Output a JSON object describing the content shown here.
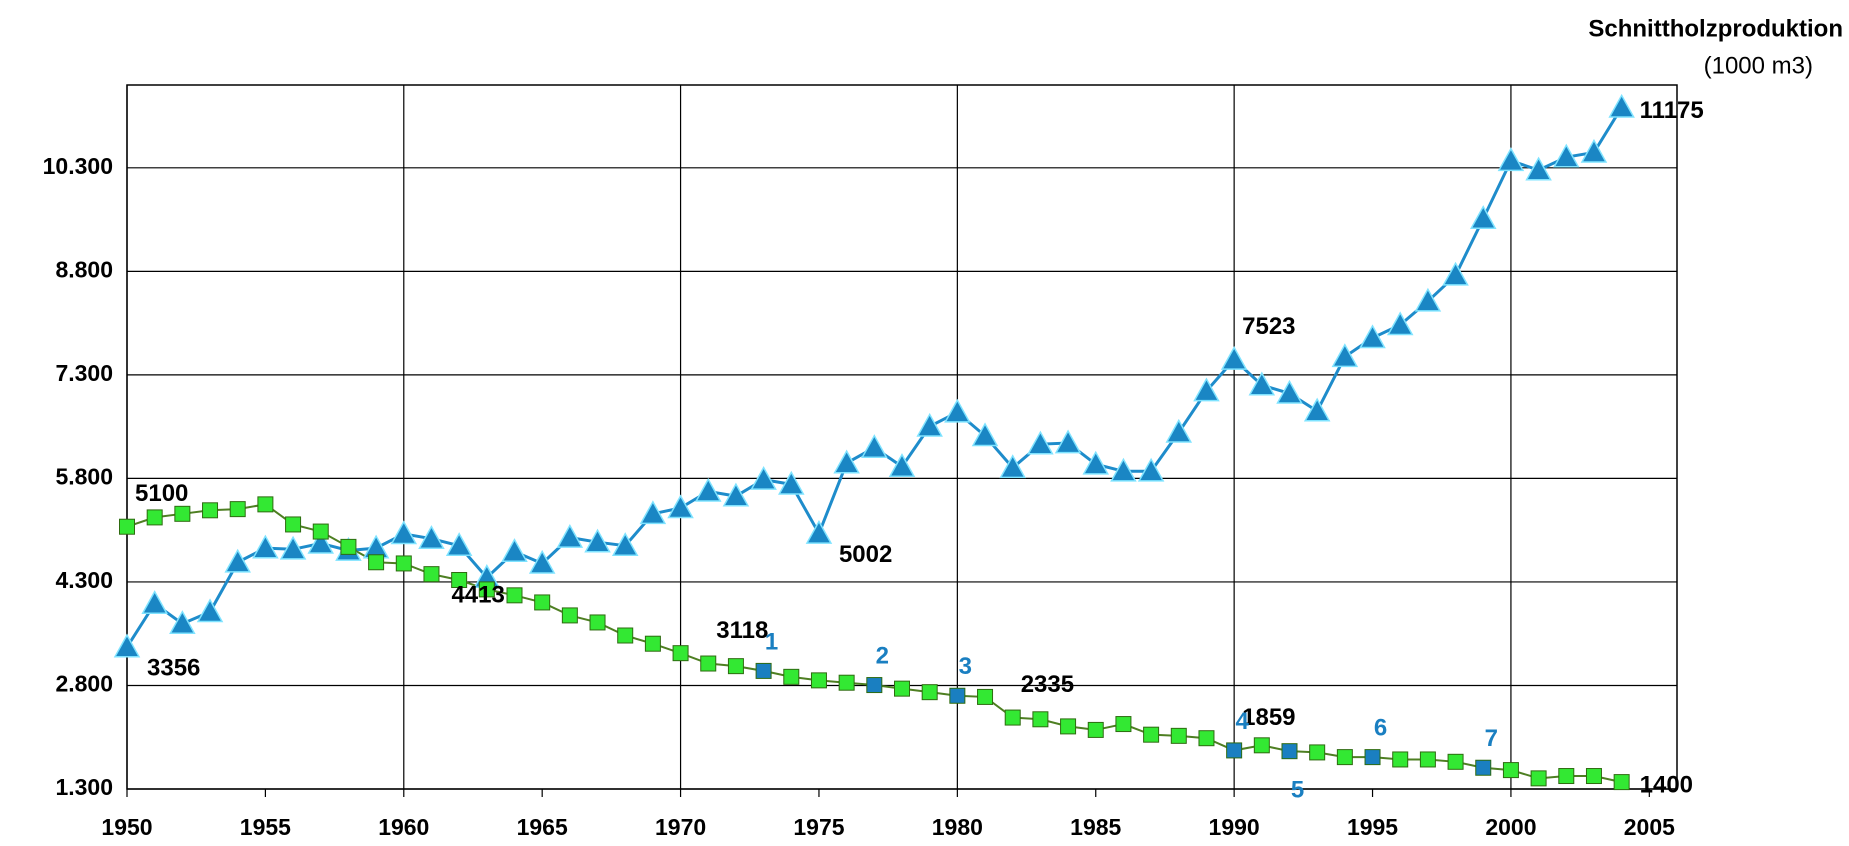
{
  "chart_data": {
    "type": "line",
    "title": "Schnittholzproduktion",
    "subtitle": "(1000 m3)",
    "x": [
      1950,
      1951,
      1952,
      1953,
      1954,
      1955,
      1956,
      1957,
      1958,
      1959,
      1960,
      1961,
      1962,
      1963,
      1964,
      1965,
      1966,
      1967,
      1968,
      1969,
      1970,
      1971,
      1972,
      1973,
      1974,
      1975,
      1976,
      1977,
      1978,
      1979,
      1980,
      1981,
      1982,
      1983,
      1984,
      1985,
      1986,
      1987,
      1988,
      1989,
      1990,
      1991,
      1992,
      1993,
      1994,
      1995,
      1996,
      1997,
      1998,
      1999,
      2000,
      2001,
      2002,
      2003,
      2004
    ],
    "series": [
      {
        "marker": "triangle",
        "color": "#1a86c4",
        "line_color": "#1e8ccb",
        "values": [
          3356,
          3986,
          3695,
          3866,
          4585,
          4790,
          4773,
          4859,
          4756,
          4790,
          4996,
          4927,
          4825,
          4363,
          4739,
          4568,
          4944,
          4876,
          4825,
          5287,
          5372,
          5612,
          5543,
          5783,
          5714,
          5002,
          6022,
          6245,
          5971,
          6553,
          6758,
          6416,
          5954,
          6296,
          6313,
          6005,
          5903,
          5903,
          6467,
          7066,
          7523,
          7152,
          7032,
          6775,
          7562,
          7836,
          8024,
          8366,
          8743,
          9564,
          10403,
          10266,
          10454,
          10523,
          11175
        ],
        "labeled": [
          0,
          25,
          40,
          54
        ]
      },
      {
        "marker": "square",
        "color": "#33e833",
        "line_color": "#4e7f22",
        "values": [
          5100,
          5235,
          5287,
          5338,
          5355,
          5424,
          5133,
          5030,
          4808,
          4585,
          4568,
          4413,
          4328,
          4192,
          4106,
          4003,
          3815,
          3713,
          3524,
          3405,
          3268,
          3118,
          3080,
          3011,
          2925,
          2874,
          2840,
          2806,
          2754,
          2703,
          2651,
          2634,
          2335,
          2310,
          2207,
          2156,
          2241,
          2087,
          2070,
          2036,
          1859,
          1933,
          1848,
          1830,
          1762,
          1762,
          1728,
          1728,
          1694,
          1608,
          1574,
          1454,
          1488,
          1488,
          1400
        ],
        "labeled": [
          0,
          11,
          21,
          32,
          40,
          54
        ]
      }
    ],
    "annotations": [
      {
        "x": 1973,
        "label": "1",
        "position": "above"
      },
      {
        "x": 1977,
        "label": "2",
        "position": "above"
      },
      {
        "x": 1980,
        "label": "3",
        "position": "above"
      },
      {
        "x": 1990,
        "label": "4",
        "position": "above"
      },
      {
        "x": 1992,
        "label": "5",
        "position": "below"
      },
      {
        "x": 1995,
        "label": "6",
        "position": "above"
      },
      {
        "x": 1999,
        "label": "7",
        "position": "above"
      }
    ],
    "annotation_color": "#1a7fc1",
    "xlim": [
      1950,
      2006
    ],
    "xticks": [
      1950,
      1955,
      1960,
      1965,
      1970,
      1975,
      1980,
      1985,
      1990,
      1995,
      2000,
      2005
    ],
    "ylim": [
      1300,
      11500
    ],
    "yticks": [
      {
        "value": 1300,
        "label": "1.300"
      },
      {
        "value": 2800,
        "label": "2.800"
      },
      {
        "value": 4300,
        "label": "4.300"
      },
      {
        "value": 5800,
        "label": "5.800"
      },
      {
        "value": 7300,
        "label": "7.300"
      },
      {
        "value": 8800,
        "label": "8.800"
      },
      {
        "value": 10300,
        "label": "10.300"
      }
    ],
    "grid": true
  }
}
